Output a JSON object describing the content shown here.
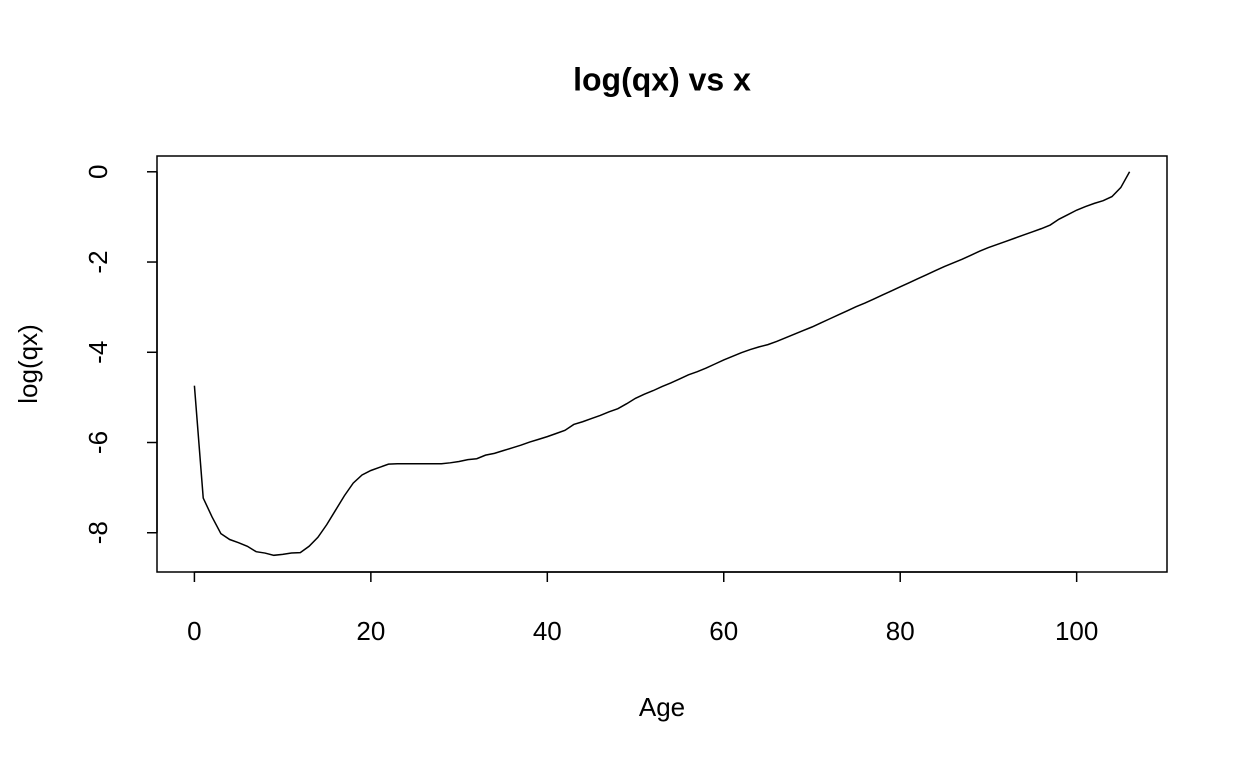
{
  "chart_data": {
    "type": "line",
    "title": "log(qx) vs x",
    "x_label": "Age",
    "y_label": "log(qx)",
    "x": [
      0,
      1,
      2,
      3,
      4,
      5,
      6,
      7,
      8,
      9,
      10,
      11,
      12,
      13,
      14,
      15,
      16,
      17,
      18,
      19,
      20,
      21,
      22,
      23,
      24,
      25,
      26,
      27,
      28,
      29,
      30,
      31,
      32,
      33,
      34,
      35,
      36,
      37,
      38,
      39,
      40,
      41,
      42,
      43,
      44,
      45,
      46,
      47,
      48,
      49,
      50,
      51,
      52,
      53,
      54,
      55,
      56,
      57,
      58,
      59,
      60,
      61,
      62,
      63,
      64,
      65,
      66,
      67,
      68,
      69,
      70,
      71,
      72,
      73,
      74,
      75,
      76,
      77,
      78,
      79,
      80,
      81,
      82,
      83,
      84,
      85,
      86,
      87,
      88,
      89,
      90,
      91,
      92,
      93,
      94,
      95,
      96,
      97,
      98,
      99,
      100,
      101,
      102,
      103,
      104,
      105,
      106
    ],
    "series": [
      {
        "name": "log(qx)",
        "color": "#000000",
        "values": [
          -4.74,
          -7.23,
          -7.65,
          -8.02,
          -8.15,
          -8.22,
          -8.3,
          -8.42,
          -8.45,
          -8.5,
          -8.48,
          -8.45,
          -8.44,
          -8.3,
          -8.1,
          -7.82,
          -7.5,
          -7.18,
          -6.9,
          -6.72,
          -6.62,
          -6.55,
          -6.48,
          -6.47,
          -6.47,
          -6.47,
          -6.47,
          -6.47,
          -6.47,
          -6.45,
          -6.42,
          -6.38,
          -6.36,
          -6.28,
          -6.24,
          -6.18,
          -6.12,
          -6.06,
          -5.99,
          -5.93,
          -5.87,
          -5.8,
          -5.73,
          -5.6,
          -5.54,
          -5.47,
          -5.4,
          -5.32,
          -5.25,
          -5.14,
          -5.02,
          -4.93,
          -4.85,
          -4.76,
          -4.68,
          -4.59,
          -4.5,
          -4.43,
          -4.35,
          -4.26,
          -4.17,
          -4.09,
          -4.01,
          -3.94,
          -3.88,
          -3.83,
          -3.76,
          -3.68,
          -3.6,
          -3.52,
          -3.44,
          -3.35,
          -3.26,
          -3.17,
          -3.08,
          -2.99,
          -2.91,
          -2.82,
          -2.73,
          -2.64,
          -2.55,
          -2.46,
          -2.37,
          -2.28,
          -2.19,
          -2.1,
          -2.02,
          -1.94,
          -1.85,
          -1.76,
          -1.68,
          -1.61,
          -1.54,
          -1.47,
          -1.4,
          -1.33,
          -1.26,
          -1.18,
          -1.05,
          -0.95,
          -0.85,
          -0.77,
          -0.7,
          -0.64,
          -0.55,
          -0.35,
          0
        ]
      }
    ],
    "xlim": [
      -4.24,
      110.24
    ],
    "ylim": [
      -8.87,
      0.35
    ],
    "xticks": [
      0,
      20,
      40,
      60,
      80,
      100
    ],
    "yticks": [
      -8,
      -6,
      -4,
      -2,
      0
    ]
  }
}
